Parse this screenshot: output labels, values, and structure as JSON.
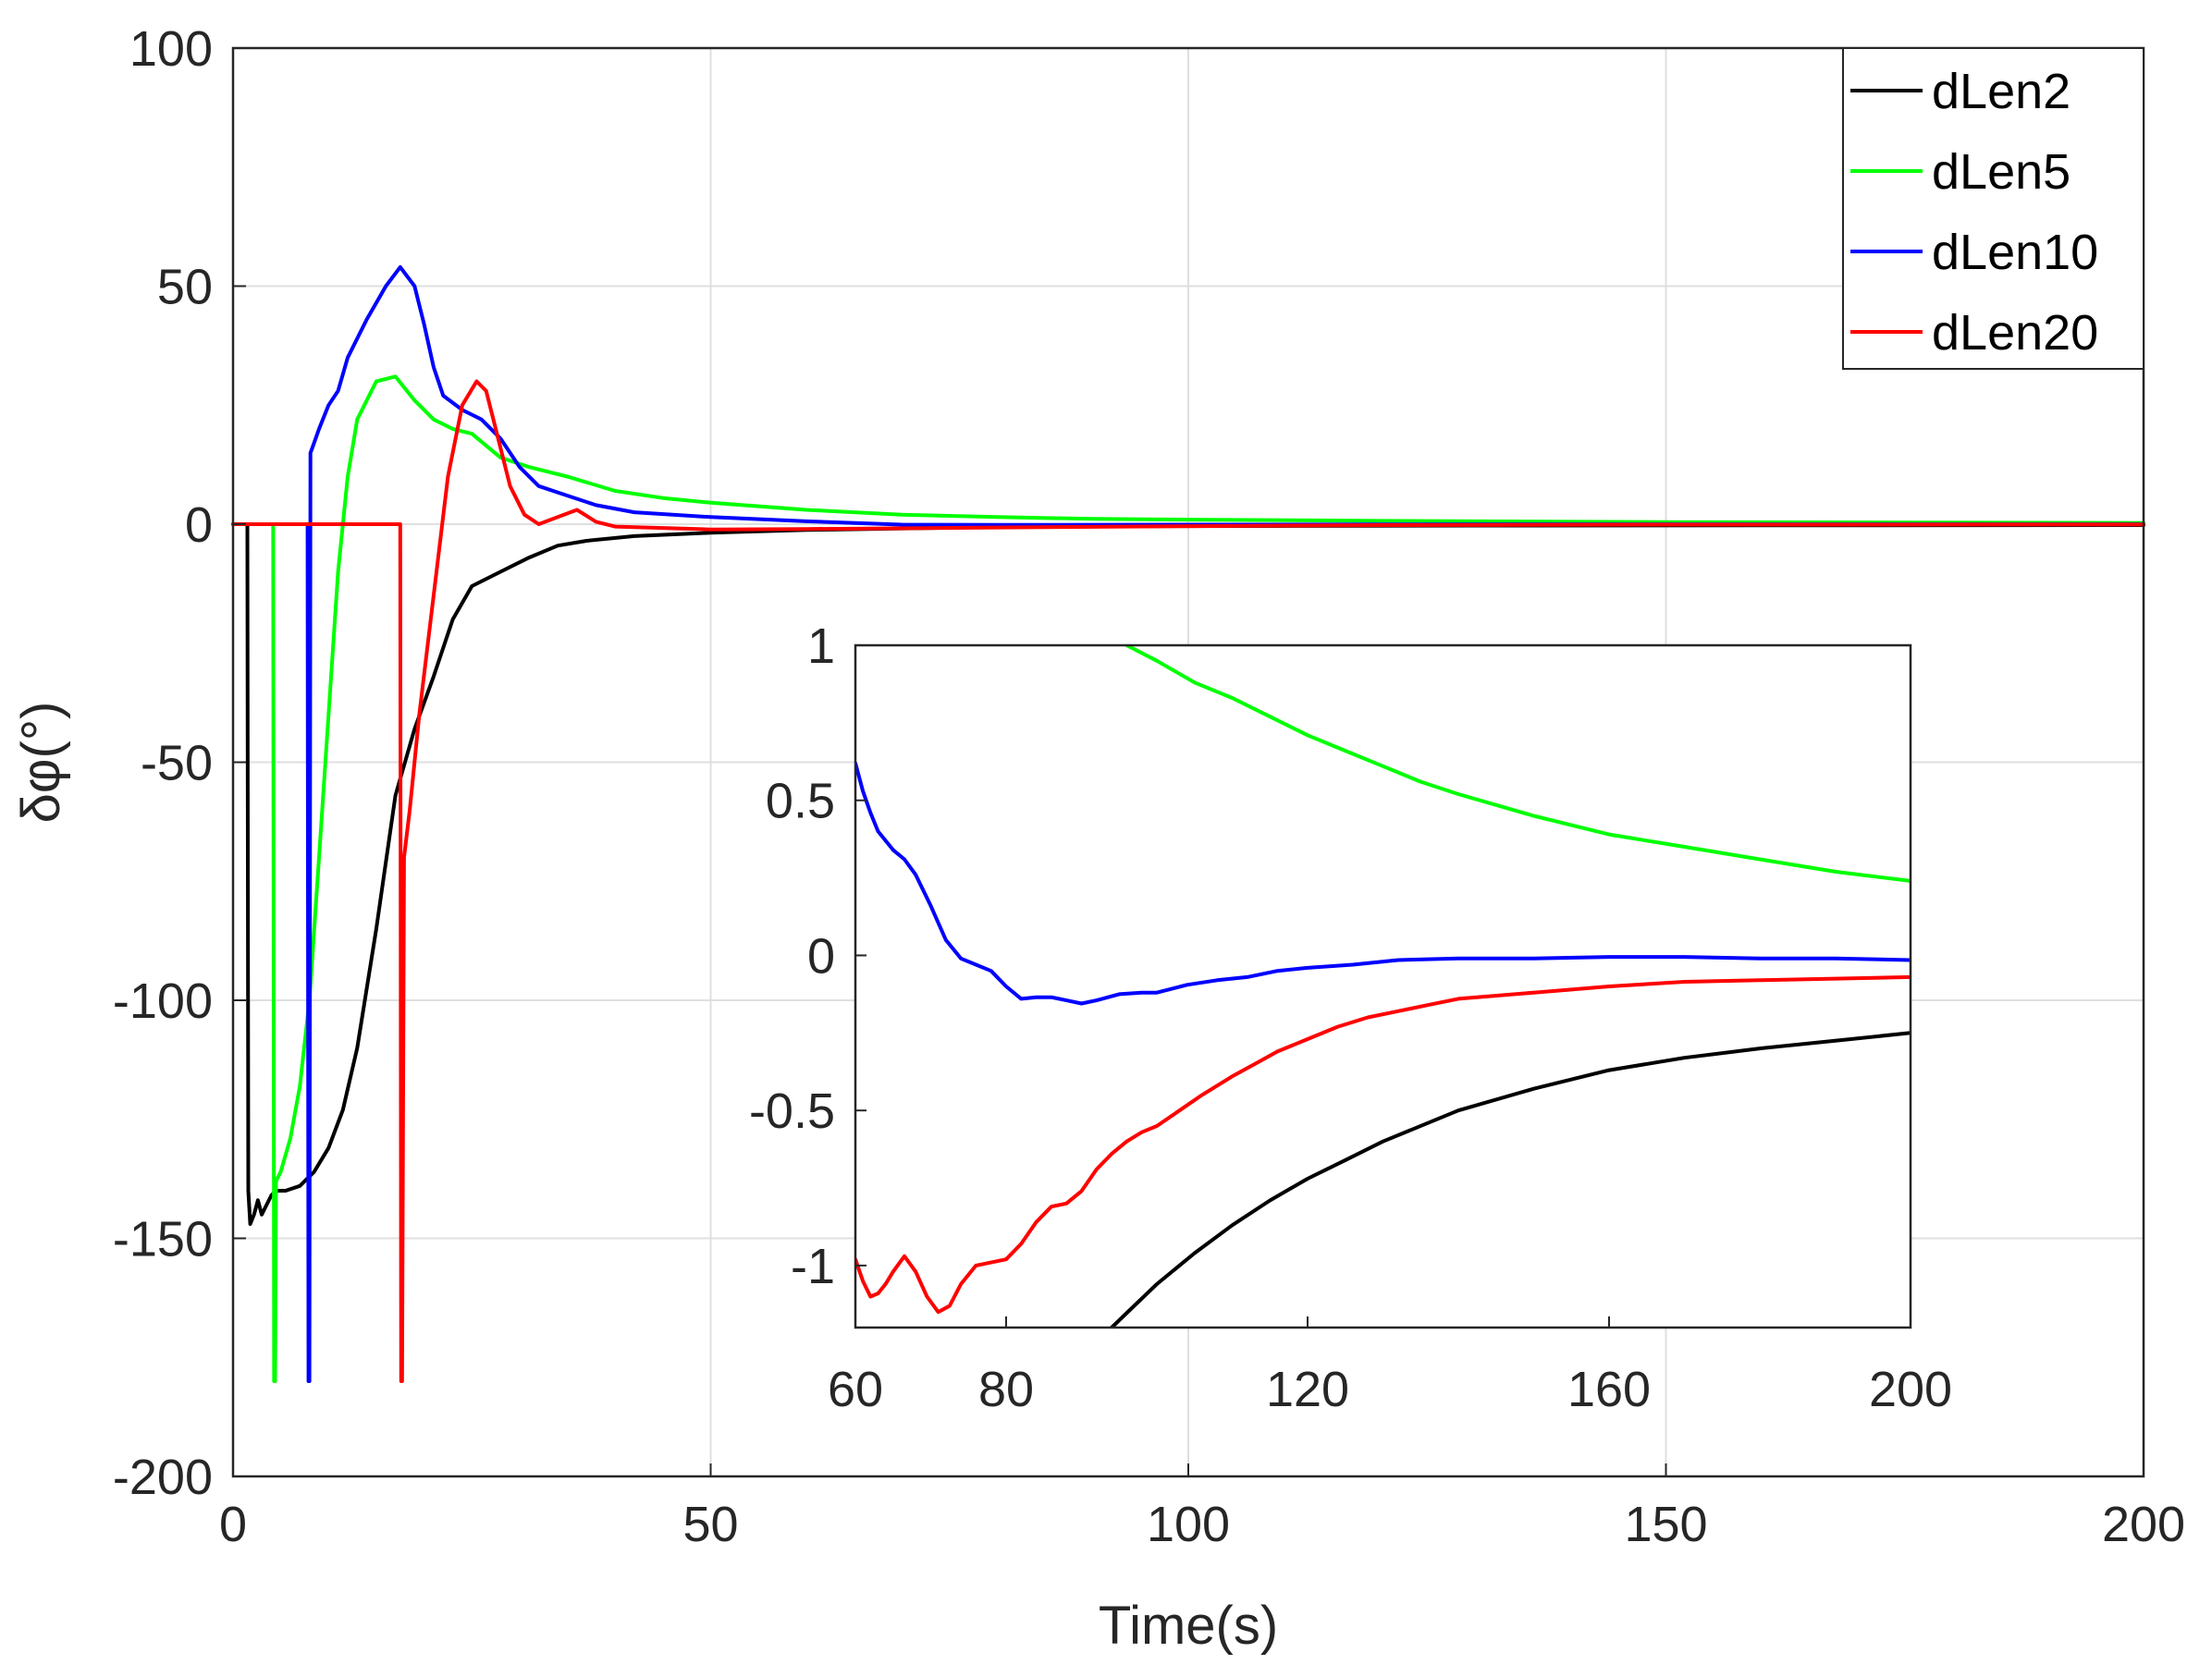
{
  "chart_data": [
    {
      "type": "line",
      "role": "main",
      "title": "",
      "xlabel": "Time(s)",
      "ylabel": "δφ(°)",
      "xlim": [
        0,
        200
      ],
      "ylim": [
        -200,
        100
      ],
      "xticks": [
        0,
        50,
        100,
        150,
        200
      ],
      "xtick_labels": [
        "0",
        "50",
        "100",
        "150",
        "200"
      ],
      "yticks": [
        -200,
        -150,
        -100,
        -50,
        0,
        50,
        100
      ],
      "ytick_labels": [
        "-200",
        "-150",
        "-100",
        "-50",
        "0",
        "50",
        "100"
      ],
      "grid": true,
      "legend": {
        "location": "top-right",
        "entries": [
          "dLen2",
          "dLen5",
          "dLen10",
          "dLen20"
        ]
      },
      "series": [
        {
          "name": "dLen2",
          "color": "#000000",
          "x": [
            0,
            1.5,
            1.6,
            1.8,
            2.2,
            2.6,
            3,
            3.5,
            4,
            4.5,
            5.5,
            7,
            8.5,
            10,
            11.5,
            13,
            15,
            17,
            19,
            21,
            23,
            25,
            28,
            31,
            34,
            37,
            42,
            50,
            60,
            80,
            100,
            130,
            160,
            200
          ],
          "y": [
            0,
            0,
            -140,
            -147,
            -145,
            -142,
            -145,
            -143,
            -141,
            -140,
            -140,
            -139,
            -136,
            -131,
            -123,
            -110,
            -85,
            -57,
            -43,
            -32,
            -20,
            -13,
            -10,
            -7,
            -4.5,
            -3.5,
            -2.5,
            -1.8,
            -1.2,
            -0.6,
            -0.4,
            -0.3,
            -0.25,
            -0.2
          ]
        },
        {
          "name": "dLen5",
          "color": "#00ff00",
          "x": [
            0,
            4.2,
            4.3,
            4.4,
            4.5,
            5,
            6,
            7,
            8,
            9,
            10,
            11,
            12,
            13,
            15,
            17,
            19,
            21,
            23,
            25,
            28,
            31,
            35,
            40,
            45,
            50,
            60,
            70,
            80,
            90,
            100,
            120,
            150,
            200
          ],
          "y": [
            0,
            0,
            -180,
            -180,
            -138,
            -136,
            -129,
            -118,
            -100,
            -70,
            -40,
            -10,
            10,
            22,
            30,
            31,
            26,
            22,
            20,
            19,
            14,
            12,
            10,
            7,
            5.5,
            4.5,
            3,
            2,
            1.5,
            1.1,
            0.95,
            0.7,
            0.45,
            0.25
          ]
        },
        {
          "name": "dLen10",
          "color": "#0000ff",
          "x": [
            0,
            7.8,
            7.9,
            8.0,
            8.1,
            8.3,
            9,
            10,
            11,
            12,
            14,
            16,
            17.5,
            19,
            20,
            21,
            22,
            24,
            26,
            28,
            30,
            32,
            35,
            38,
            42,
            50,
            60,
            70,
            80,
            100,
            120,
            200
          ],
          "y": [
            0,
            0,
            -180,
            -180,
            15,
            16,
            20,
            25,
            28,
            35,
            43,
            50,
            54,
            50,
            42,
            33,
            27,
            24,
            22,
            18,
            12,
            8,
            6,
            4,
            2.5,
            1.5,
            0.6,
            -0.1,
            -0.15,
            -0.1,
            -0.03,
            -0.02
          ]
        },
        {
          "name": "dLen20",
          "color": "#ff0000",
          "x": [
            0,
            17.5,
            17.6,
            17.7,
            17.9,
            18.5,
            19.5,
            21,
            22.5,
            24,
            25.5,
            26.5,
            27.5,
            29,
            30.5,
            32,
            34,
            36,
            38,
            40,
            45,
            50,
            60,
            80,
            100,
            120,
            150,
            200
          ],
          "y": [
            0,
            0,
            -180,
            -180,
            -70,
            -60,
            -40,
            -15,
            10,
            25,
            30,
            28,
            20,
            8,
            2,
            0,
            1.5,
            3,
            0.5,
            -0.5,
            -0.8,
            -1.1,
            -1.0,
            -0.7,
            -0.4,
            -0.2,
            -0.1,
            -0.07
          ]
        }
      ]
    },
    {
      "type": "line",
      "role": "inset",
      "title": "",
      "xlabel": "",
      "ylabel": "",
      "xlim": [
        60,
        200
      ],
      "ylim": [
        -1.2,
        1
      ],
      "xticks": [
        60,
        80,
        120,
        160,
        200
      ],
      "xtick_labels": [
        "60",
        "80",
        "120",
        "160",
        "200"
      ],
      "yticks": [
        -1,
        -0.5,
        0,
        0.5,
        1
      ],
      "ytick_labels": [
        "-1",
        "-0.5",
        "0",
        "0.5",
        "1"
      ],
      "grid": false,
      "series": [
        {
          "name": "dLen2",
          "color": "#000000",
          "x": [
            94,
            97,
            100,
            105,
            110,
            115,
            120,
            125,
            130,
            140,
            150,
            160,
            170,
            180,
            190,
            200
          ],
          "y": [
            -1.2,
            -1.13,
            -1.06,
            -0.96,
            -0.87,
            -0.79,
            -0.72,
            -0.66,
            -0.6,
            -0.5,
            -0.43,
            -0.37,
            -0.33,
            -0.3,
            -0.275,
            -0.25
          ]
        },
        {
          "name": "dLen5",
          "color": "#00ff00",
          "x": [
            96,
            100,
            105,
            110,
            115,
            120,
            125,
            130,
            135,
            140,
            150,
            160,
            170,
            180,
            190,
            200
          ],
          "y": [
            1,
            0.95,
            0.88,
            0.83,
            0.77,
            0.71,
            0.66,
            0.61,
            0.56,
            0.52,
            0.45,
            0.39,
            0.35,
            0.31,
            0.27,
            0.24
          ]
        },
        {
          "name": "dLen10",
          "color": "#0000ff",
          "x": [
            60,
            61,
            62,
            63,
            65,
            66.5,
            68,
            70,
            72,
            74,
            76,
            78,
            80,
            82,
            84,
            86,
            88,
            90,
            92,
            95,
            98,
            100,
            104,
            108,
            112,
            116,
            120,
            126,
            132,
            140,
            150,
            160,
            170,
            180,
            190,
            200
          ],
          "y": [
            0.62,
            0.53,
            0.46,
            0.4,
            0.34,
            0.31,
            0.26,
            0.16,
            0.05,
            -0.01,
            -0.03,
            -0.05,
            -0.1,
            -0.14,
            -0.135,
            -0.135,
            -0.145,
            -0.155,
            -0.145,
            -0.125,
            -0.12,
            -0.12,
            -0.095,
            -0.08,
            -0.07,
            -0.05,
            -0.04,
            -0.03,
            -0.015,
            -0.01,
            -0.01,
            -0.005,
            -0.005,
            -0.01,
            -0.01,
            -0.015
          ]
        },
        {
          "name": "dLen20",
          "color": "#ff0000",
          "x": [
            60,
            61,
            62,
            63,
            64,
            65,
            66.5,
            68,
            69.5,
            71,
            72.5,
            74,
            76,
            78,
            80,
            82,
            84,
            86,
            88,
            90,
            92,
            94,
            96,
            98,
            100,
            103,
            106,
            110,
            113,
            116,
            120,
            124,
            128,
            132,
            136,
            140,
            150,
            160,
            170,
            180,
            190,
            200
          ],
          "y": [
            -0.98,
            -1.05,
            -1.1,
            -1.09,
            -1.06,
            -1.02,
            -0.97,
            -1.02,
            -1.1,
            -1.15,
            -1.13,
            -1.06,
            -1.0,
            -0.99,
            -0.98,
            -0.93,
            -0.86,
            -0.81,
            -0.8,
            -0.76,
            -0.69,
            -0.64,
            -0.6,
            -0.57,
            -0.55,
            -0.5,
            -0.45,
            -0.39,
            -0.35,
            -0.31,
            -0.27,
            -0.23,
            -0.2,
            -0.18,
            -0.16,
            -0.14,
            -0.12,
            -0.1,
            -0.085,
            -0.08,
            -0.075,
            -0.07
          ]
        }
      ]
    }
  ]
}
